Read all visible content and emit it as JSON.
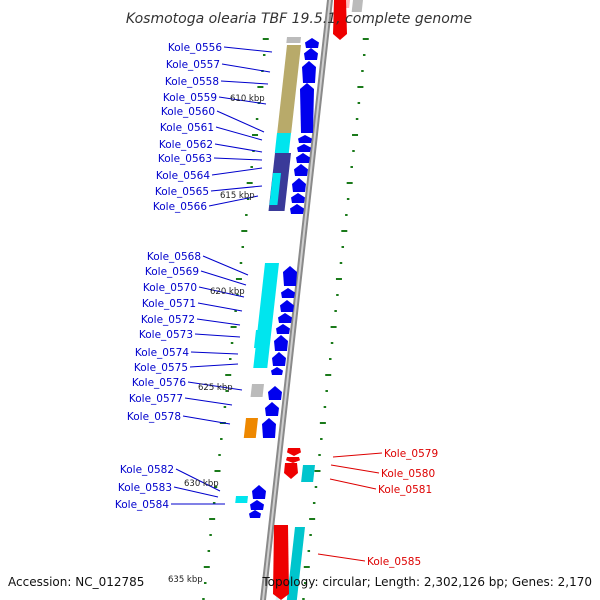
{
  "header": {
    "title": "Kosmotoga olearia TBF 19.5.1, complete genome"
  },
  "footer": {
    "accession": "Accession: NC_012785",
    "topology": "Topology: circular; Length: 2,302,126 bp; Genes: 2,170"
  },
  "colors": {
    "forward_label": "#0000cc",
    "reverse_label": "#dd0000",
    "cds_forward": "#0000ee",
    "cds_reverse": "#ee0000",
    "cyan": "#00e5ee",
    "teal": "#00c5cd",
    "olive": "#b8aa6a",
    "orange": "#ee8800",
    "gray": "#bbbbbb",
    "navy": "#3a3a99",
    "backbone": "#8a8a8a",
    "tick": "#1a7a1a"
  },
  "kbp_labels": [
    "610 kbp",
    "615 kbp",
    "620 kbp",
    "625 kbp",
    "630 kbp",
    "635 kbp"
  ],
  "genes_forward": [
    "Kole_0556",
    "Kole_0557",
    "Kole_0558",
    "Kole_0559",
    "Kole_0560",
    "Kole_0561",
    "Kole_0562",
    "Kole_0563",
    "Kole_0564",
    "Kole_0565",
    "Kole_0566",
    "Kole_0568",
    "Kole_0569",
    "Kole_0570",
    "Kole_0571",
    "Kole_0572",
    "Kole_0573",
    "Kole_0574",
    "Kole_0575",
    "Kole_0576",
    "Kole_0577",
    "Kole_0578",
    "Kole_0582",
    "Kole_0583",
    "Kole_0584"
  ],
  "genes_reverse": [
    "Kole_0579",
    "Kole_0580",
    "Kole_0581",
    "Kole_0585"
  ]
}
